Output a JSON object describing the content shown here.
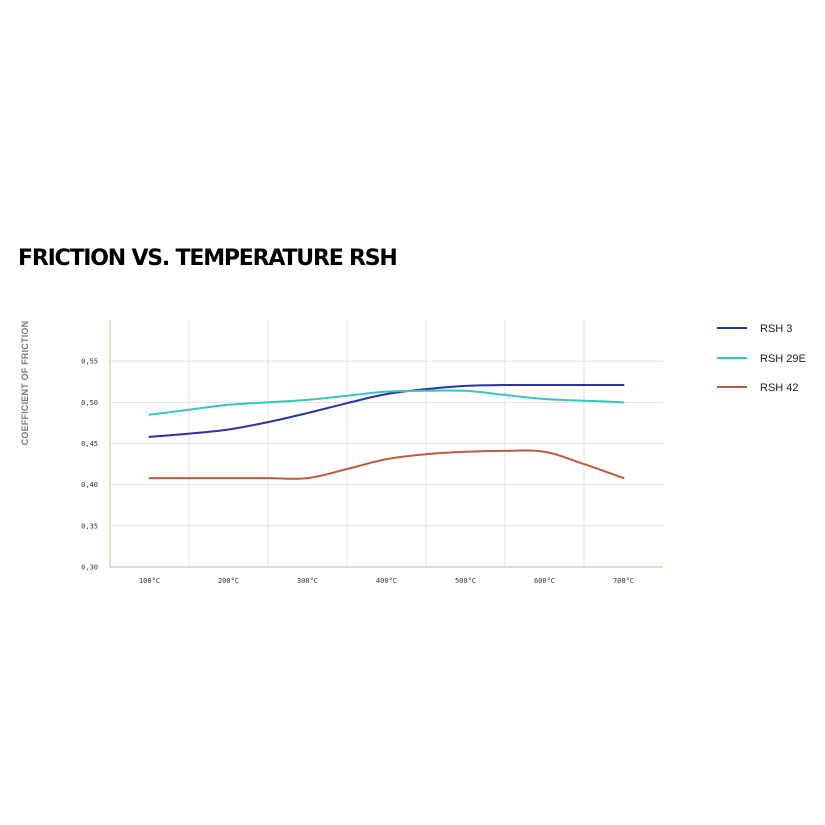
{
  "chart_data": {
    "type": "line",
    "title": "FRICTION VS. TEMPERATURE RSH",
    "xlabel": "",
    "ylabel": "COEFFICIENT OF FRICTION",
    "x": [
      100,
      150,
      200,
      250,
      300,
      350,
      400,
      450,
      500,
      550,
      600,
      650,
      700
    ],
    "x_tick_labels": [
      "100°C",
      "200°C",
      "300°C",
      "400°C",
      "500°C",
      "600°C",
      "700°C"
    ],
    "x_tick_values": [
      100,
      200,
      300,
      400,
      500,
      600,
      700
    ],
    "y_tick_labels": [
      "0,30",
      "0,35",
      "0,40",
      "0,45",
      "0,50",
      "0,55"
    ],
    "y_tick_values": [
      0.3,
      0.35,
      0.4,
      0.45,
      0.5,
      0.55
    ],
    "ylim": [
      0.3,
      0.6
    ],
    "grid": true,
    "legend_position": "right",
    "series": [
      {
        "name": "RSH 3",
        "color": "#2a34a6",
        "values": [
          0.458,
          0.462,
          0.467,
          0.476,
          0.487,
          0.499,
          0.51,
          0.516,
          0.52,
          0.521,
          0.521,
          0.521,
          0.521
        ]
      },
      {
        "name": "RSH 29E",
        "color": "#36c6b8",
        "values": [
          0.485,
          0.491,
          0.497,
          0.5,
          0.503,
          0.508,
          0.513,
          0.514,
          0.514,
          0.509,
          0.504,
          0.502,
          0.5
        ]
      },
      {
        "name": "RSH 42",
        "color": "#bf5b3d",
        "values": [
          0.408,
          0.408,
          0.408,
          0.408,
          0.408,
          0.419,
          0.431,
          0.437,
          0.44,
          0.441,
          0.44,
          0.425,
          0.408
        ]
      }
    ]
  }
}
